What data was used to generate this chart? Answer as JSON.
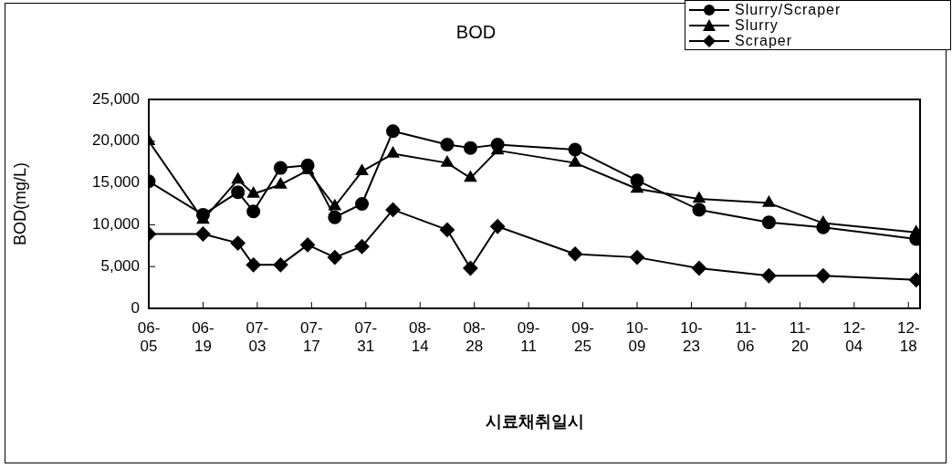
{
  "chart_data": {
    "type": "line",
    "title": "BOD",
    "xlabel": "시료채취일시",
    "ylabel": "BOD(mg/L)",
    "x": [
      "--06-05",
      "--06-19",
      "--06-28",
      "--07-02",
      "--07-09",
      "--07-16",
      "--07-23",
      "--07-30",
      "--08-07",
      "--08-21",
      "--08-27",
      "--09-03",
      "--09-23",
      "--10-09",
      "--10-25",
      "--11-12",
      "--11-26",
      "--12-20"
    ],
    "series": [
      {
        "name": "Slurry/Scraper",
        "color": "#000000",
        "marker": "circle",
        "values": [
          15200,
          11200,
          13900,
          11600,
          16800,
          17100,
          10900,
          12500,
          21200,
          19600,
          19200,
          19600,
          19000,
          15300,
          11800,
          10300,
          9700,
          8300
        ]
      },
      {
        "name": "Slurry",
        "color": "#000000",
        "marker": "triangle",
        "values": [
          20000,
          10600,
          15400,
          13700,
          14800,
          16500,
          12200,
          16400,
          18500,
          17400,
          15600,
          18900,
          17400,
          14300,
          13100,
          12600,
          10200,
          9100
        ]
      },
      {
        "name": "Scraper",
        "color": "#000000",
        "marker": "diamond",
        "values": [
          8900,
          8900,
          7800,
          5200,
          5200,
          7600,
          6100,
          7400,
          11800,
          9400,
          4800,
          9800,
          6500,
          6100,
          4800,
          3900,
          3900,
          3400
        ]
      }
    ],
    "xlim": [
      "--06-05",
      "--12-21"
    ],
    "xticks": [
      {
        "value": "--06-05",
        "label": "06-05"
      },
      {
        "value": "--06-19",
        "label": "06-19"
      },
      {
        "value": "--07-03",
        "label": "07-03"
      },
      {
        "value": "--07-17",
        "label": "07-17"
      },
      {
        "value": "--07-31",
        "label": "07-31"
      },
      {
        "value": "--08-14",
        "label": "08-14"
      },
      {
        "value": "--08-28",
        "label": "08-28"
      },
      {
        "value": "--09-11",
        "label": "09-11"
      },
      {
        "value": "--09-25",
        "label": "09-25"
      },
      {
        "value": "--10-09",
        "label": "10-09"
      },
      {
        "value": "--10-23",
        "label": "10-23"
      },
      {
        "value": "--11-06",
        "label": "11-06"
      },
      {
        "value": "--11-20",
        "label": "11-20"
      },
      {
        "value": "--12-04",
        "label": "12-04"
      },
      {
        "value": "--12-18",
        "label": "12-18"
      }
    ],
    "ylim": [
      0,
      25000
    ],
    "yticks": [
      {
        "value": 0,
        "label": "0"
      },
      {
        "value": 5000,
        "label": "5,000"
      },
      {
        "value": 10000,
        "label": "10,000"
      },
      {
        "value": 15000,
        "label": "15,000"
      },
      {
        "value": 20000,
        "label": "20,000"
      },
      {
        "value": 25000,
        "label": "25,000"
      }
    ],
    "grid": false,
    "legend": "top right",
    "line_style": "solid"
  }
}
